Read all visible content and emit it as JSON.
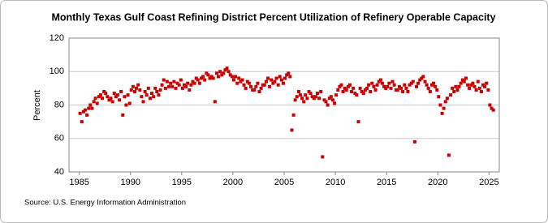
{
  "chart_data": {
    "type": "scatter",
    "title": "Monthly Texas Gulf Coast Refining District Percent Utilization of Refinery Operable Capacity",
    "y_label": "Percent",
    "source": "Source: U.S. Energy Information Administration",
    "color": "#cc0000",
    "grid": true,
    "xlim": [
      1984,
      2026
    ],
    "ylim": [
      40,
      120
    ],
    "xticks": [
      1985,
      1990,
      1995,
      2000,
      2005,
      2010,
      2015,
      2020,
      2025
    ],
    "yticks": [
      40,
      60,
      80,
      100,
      120
    ],
    "x": [
      1985.08,
      1985.25,
      1985.42,
      1985.58,
      1985.75,
      1985.92,
      1986.08,
      1986.25,
      1986.42,
      1986.58,
      1986.75,
      1986.92,
      1987.08,
      1987.25,
      1987.42,
      1987.58,
      1987.75,
      1987.92,
      1988.08,
      1988.25,
      1988.42,
      1988.58,
      1988.75,
      1988.92,
      1989.08,
      1989.25,
      1989.42,
      1989.58,
      1989.75,
      1989.92,
      1990.08,
      1990.25,
      1990.42,
      1990.58,
      1990.75,
      1990.92,
      1991.08,
      1991.25,
      1991.42,
      1991.58,
      1991.75,
      1991.92,
      1992.08,
      1992.25,
      1992.42,
      1992.58,
      1992.75,
      1992.92,
      1993.08,
      1993.25,
      1993.42,
      1993.58,
      1993.75,
      1993.92,
      1994.08,
      1994.25,
      1994.42,
      1994.58,
      1994.75,
      1994.92,
      1995.08,
      1995.25,
      1995.42,
      1995.58,
      1995.75,
      1995.92,
      1996.08,
      1996.25,
      1996.42,
      1996.58,
      1996.75,
      1996.92,
      1997.08,
      1997.25,
      1997.42,
      1997.58,
      1997.75,
      1997.92,
      1998.08,
      1998.25,
      1998.42,
      1998.58,
      1998.75,
      1998.92,
      1999.08,
      1999.25,
      1999.42,
      1999.58,
      1999.75,
      1999.92,
      2000.08,
      2000.25,
      2000.42,
      2000.58,
      2000.75,
      2000.92,
      2001.08,
      2001.25,
      2001.42,
      2001.58,
      2001.75,
      2001.92,
      2002.08,
      2002.25,
      2002.42,
      2002.58,
      2002.75,
      2002.92,
      2003.08,
      2003.25,
      2003.42,
      2003.58,
      2003.75,
      2003.92,
      2004.08,
      2004.25,
      2004.42,
      2004.58,
      2004.75,
      2004.92,
      2005.08,
      2005.25,
      2005.42,
      2005.58,
      2005.75,
      2005.92,
      2006.08,
      2006.25,
      2006.42,
      2006.58,
      2006.75,
      2006.92,
      2007.08,
      2007.25,
      2007.42,
      2007.58,
      2007.75,
      2007.92,
      2008.08,
      2008.25,
      2008.42,
      2008.58,
      2008.75,
      2008.92,
      2009.08,
      2009.25,
      2009.42,
      2009.58,
      2009.75,
      2009.92,
      2010.08,
      2010.25,
      2010.42,
      2010.58,
      2010.75,
      2010.92,
      2011.08,
      2011.25,
      2011.42,
      2011.58,
      2011.75,
      2011.92,
      2012.08,
      2012.25,
      2012.42,
      2012.58,
      2012.75,
      2012.92,
      2013.08,
      2013.25,
      2013.42,
      2013.58,
      2013.75,
      2013.92,
      2014.08,
      2014.25,
      2014.42,
      2014.58,
      2014.75,
      2014.92,
      2015.08,
      2015.25,
      2015.42,
      2015.58,
      2015.75,
      2015.92,
      2016.08,
      2016.25,
      2016.42,
      2016.58,
      2016.75,
      2016.92,
      2017.08,
      2017.25,
      2017.42,
      2017.58,
      2017.75,
      2017.92,
      2018.08,
      2018.25,
      2018.42,
      2018.58,
      2018.75,
      2018.92,
      2019.08,
      2019.25,
      2019.42,
      2019.58,
      2019.75,
      2019.92,
      2020.08,
      2020.25,
      2020.42,
      2020.58,
      2020.75,
      2020.92,
      2021.08,
      2021.25,
      2021.42,
      2021.58,
      2021.75,
      2021.92,
      2022.08,
      2022.25,
      2022.42,
      2022.58,
      2022.75,
      2022.92,
      2023.08,
      2023.25,
      2023.42,
      2023.58,
      2023.75,
      2023.92,
      2024.08,
      2024.25,
      2024.42,
      2024.58,
      2024.75,
      2024.92,
      2025.08,
      2025.25,
      2025.42
    ],
    "values": [
      75,
      70,
      76,
      77,
      74,
      78,
      80,
      78,
      82,
      84,
      81,
      85,
      86,
      84,
      88,
      87,
      85,
      83,
      84,
      82,
      87,
      85,
      86,
      83,
      88,
      74,
      85,
      80,
      86,
      81,
      89,
      91,
      88,
      90,
      92,
      89,
      85,
      82,
      88,
      86,
      90,
      84,
      87,
      85,
      90,
      88,
      86,
      89,
      92,
      95,
      90,
      94,
      91,
      93,
      91,
      94,
      90,
      93,
      92,
      95,
      90,
      92,
      91,
      93,
      89,
      92,
      94,
      93,
      96,
      95,
      93,
      96,
      97,
      95,
      99,
      98,
      96,
      97,
      96,
      82,
      99,
      97,
      100,
      98,
      99,
      101,
      102,
      100,
      98,
      97,
      95,
      97,
      93,
      96,
      94,
      95,
      92,
      90,
      94,
      93,
      91,
      89,
      89,
      91,
      93,
      88,
      90,
      92,
      92,
      94,
      96,
      91,
      95,
      93,
      94,
      96,
      92,
      97,
      95,
      93,
      96,
      98,
      99,
      97,
      65,
      74,
      83,
      85,
      88,
      86,
      84,
      82,
      86,
      84,
      88,
      87,
      85,
      84,
      85,
      87,
      84,
      88,
      49,
      83,
      82,
      80,
      84,
      85,
      83,
      81,
      86,
      89,
      91,
      92,
      88,
      90,
      89,
      91,
      92,
      88,
      90,
      87,
      86,
      70,
      90,
      88,
      87,
      89,
      90,
      92,
      88,
      93,
      91,
      89,
      92,
      94,
      95,
      93,
      91,
      90,
      91,
      93,
      90,
      94,
      92,
      89,
      89,
      91,
      90,
      88,
      92,
      90,
      88,
      92,
      93,
      94,
      58,
      91,
      93,
      95,
      96,
      97,
      94,
      92,
      90,
      88,
      92,
      93,
      91,
      89,
      85,
      80,
      75,
      78,
      82,
      84,
      50,
      86,
      90,
      88,
      91,
      89,
      91,
      93,
      95,
      94,
      96,
      92,
      90,
      92,
      93,
      91,
      89,
      94,
      90,
      88,
      92,
      91,
      93,
      89,
      80,
      78,
      77
    ]
  }
}
